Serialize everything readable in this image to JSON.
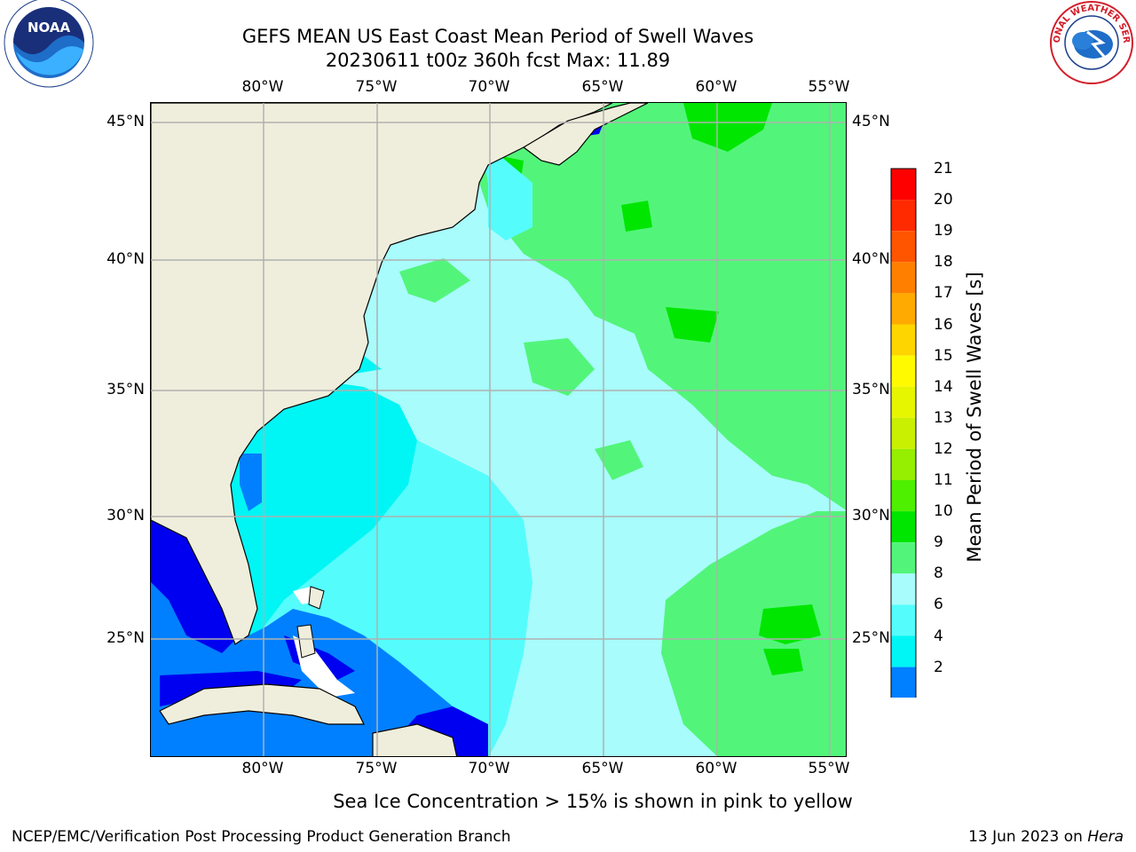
{
  "header": {
    "title_line1": "GEFS MEAN US East Coast Mean Period of Swell Waves",
    "title_line2": "20230611 t00z 360h fcst   Max: 11.89"
  },
  "logos": {
    "left": "noaa-logo",
    "left_text": "NOAA",
    "right": "nws-logo",
    "right_text": "NATIONAL WEATHER SERVICE"
  },
  "map": {
    "lon_labels": [
      "80°W",
      "75°W",
      "70°W",
      "65°W",
      "60°W",
      "55°W"
    ],
    "lat_labels": [
      "45°N",
      "40°N",
      "35°N",
      "30°N",
      "25°N"
    ],
    "extent": {
      "lon_min": -85,
      "lon_max": -54.2,
      "lat_min": 20.3,
      "lat_max": 45.8
    },
    "land_color": "#efeedc",
    "grid_color": "#b0b0b0"
  },
  "colorbar": {
    "label": "Mean Period of Swell Waves [s]",
    "ticks": [
      "21",
      "20",
      "19",
      "18",
      "17",
      "16",
      "15",
      "14",
      "13",
      "12",
      "11",
      "10",
      "9",
      "8",
      "6",
      "4",
      "2"
    ],
    "colors": [
      "#ff0000",
      "#ff2a00",
      "#ff5500",
      "#ff8000",
      "#ffaa00",
      "#ffd500",
      "#fffa00",
      "#e6f500",
      "#c8f000",
      "#96ee00",
      "#4ef000",
      "#00e600",
      "#52f57a",
      "#a8fcfc",
      "#55fcfc",
      "#00f5f5",
      "#0080ff"
    ],
    "under_color": "#0000f0"
  },
  "notes": {
    "ice": "Sea Ice Concentration > 15% is shown in pink to yellow",
    "footer_left": "NCEP/EMC/Verification Post Processing Product Generation Branch",
    "footer_date": "13 Jun 2023 on ",
    "footer_machine": "Hera"
  }
}
